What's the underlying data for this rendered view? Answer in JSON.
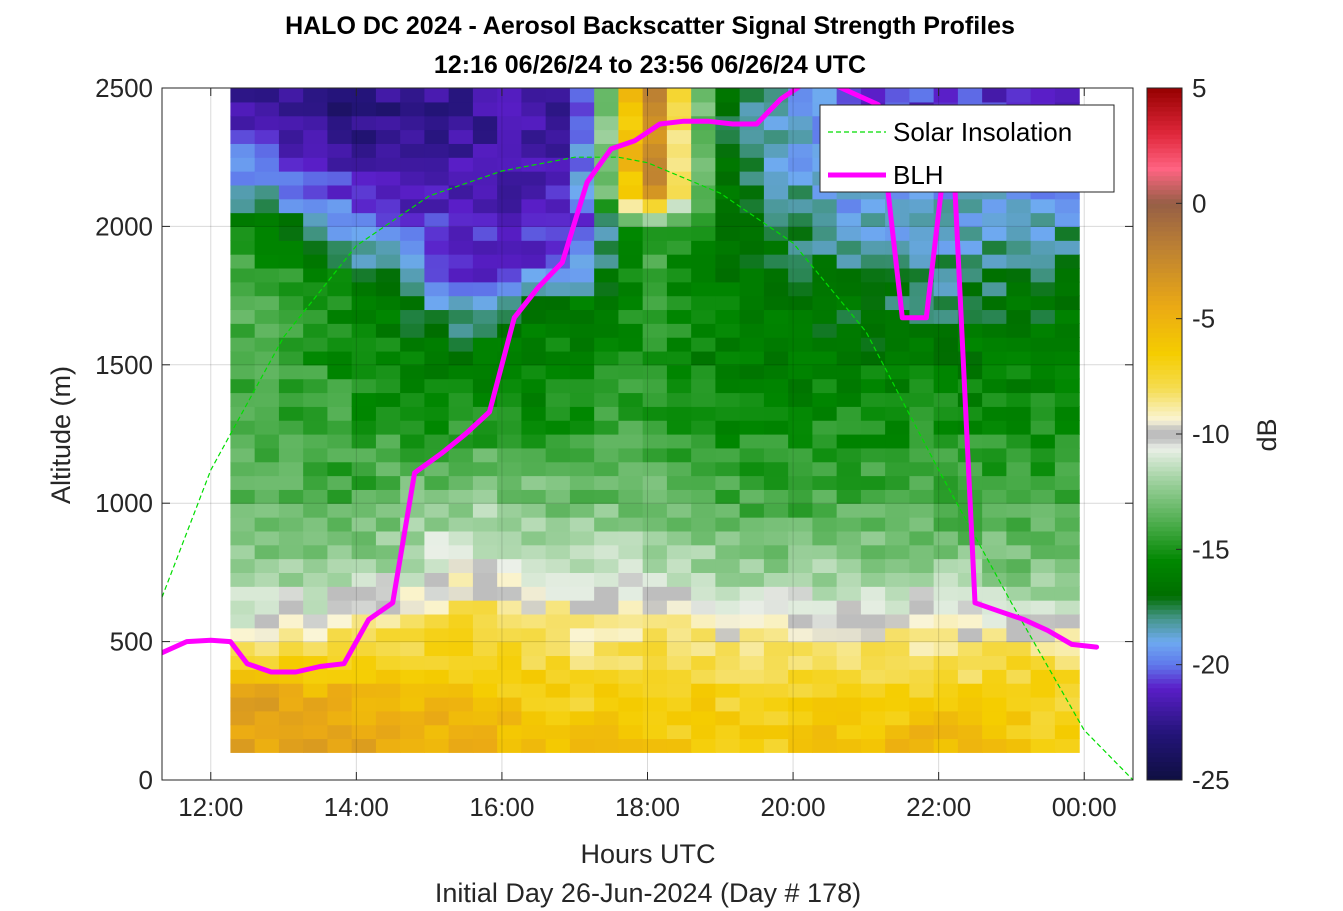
{
  "chart_data": {
    "type": "heatmap",
    "title_line1": "HALO DC 2024 - Aerosol Backscatter Signal Strength Profiles",
    "title_line2": "12:16 06/26/24 to 23:56 06/26/24  UTC",
    "xlabel": "Hours UTC",
    "xlabel2": "Initial Day 26-Jun-2024 (Day # 178)",
    "ylabel": "Altitude (m)",
    "colorbar_label": "dB",
    "xlim_hours": [
      11.33,
      24.67
    ],
    "ylim": [
      0,
      2500
    ],
    "x_ticks": [
      {
        "v": 12,
        "label": "12:00"
      },
      {
        "v": 14,
        "label": "14:00"
      },
      {
        "v": 16,
        "label": "16:00"
      },
      {
        "v": 18,
        "label": "18:00"
      },
      {
        "v": 20,
        "label": "20:00"
      },
      {
        "v": 22,
        "label": "22:00"
      },
      {
        "v": 24,
        "label": "00:00"
      }
    ],
    "y_ticks": [
      {
        "v": 0,
        "label": "0"
      },
      {
        "v": 500,
        "label": "500"
      },
      {
        "v": 1000,
        "label": "1000"
      },
      {
        "v": 1500,
        "label": "1500"
      },
      {
        "v": 2000,
        "label": "2000"
      },
      {
        "v": 2500,
        "label": "2500"
      }
    ],
    "clim": [
      -25,
      5
    ],
    "colorbar_ticks": [
      {
        "v": 5,
        "label": "5"
      },
      {
        "v": 0,
        "label": "0"
      },
      {
        "v": -5,
        "label": "-5"
      },
      {
        "v": -10,
        "label": "-10"
      },
      {
        "v": -15,
        "label": "-15"
      },
      {
        "v": -20,
        "label": "-20"
      },
      {
        "v": -25,
        "label": "-25"
      }
    ],
    "grid": true,
    "legend_position": "top-right",
    "legend": [
      {
        "name": "Solar Insolation",
        "color": "#00dd00",
        "style": "dashed"
      },
      {
        "name": "BLH",
        "color": "#ff00ff",
        "style": "solid"
      }
    ],
    "heatmap": {
      "time_start_hour": 12.27,
      "time_end_hour": 23.93,
      "altitude_start": 100,
      "altitude_end": 2500,
      "altitude_bin": 50,
      "profiles": [
        {
          "t": 12.5,
          "dB": {
            "150": -4,
            "300": -4,
            "450": -8,
            "600": -11,
            "750": -12,
            "1000": -13.5,
            "1500": -14,
            "1800": -14,
            "2000": -15,
            "2100": -18,
            "2400": -22
          }
        },
        {
          "t": 14.0,
          "dB": {
            "150": -4,
            "300": -5,
            "450": -7,
            "600": -10,
            "750": -12,
            "1000": -14,
            "1500": -15,
            "1800": -16,
            "2000": -20,
            "2400": -23
          }
        },
        {
          "t": 15.5,
          "dB": {
            "150": -5,
            "300": -6,
            "450": -7,
            "600": -8,
            "750": -10,
            "1000": -12,
            "1300": -15,
            "1600": -17,
            "1800": -21,
            "2400": -22
          }
        },
        {
          "t": 17.0,
          "dB": {
            "150": -6,
            "300": -7,
            "450": -8,
            "600": -9,
            "750": -11,
            "1000": -13,
            "1300": -15,
            "1700": -16,
            "1900": -21,
            "2400": -22
          }
        },
        {
          "t": 18.0,
          "dB": {
            "150": -6,
            "300": -7,
            "450": -8,
            "600": -9,
            "750": -11,
            "1000": -13,
            "1500": -15,
            "2000": -14,
            "2100": -3,
            "2200": -1
          }
        },
        {
          "t": 19.0,
          "dB": {
            "150": -7,
            "300": -7,
            "450": -8,
            "600": -10,
            "750": -12,
            "1000": -14,
            "1500": -16,
            "2000": -16,
            "2200": -17
          }
        },
        {
          "t": 20.5,
          "dB": {
            "150": -6,
            "300": -7,
            "450": -8,
            "600": -10,
            "750": -12,
            "1000": -14,
            "1500": -16,
            "1800": -17,
            "2100": -19,
            "2400": -20
          }
        },
        {
          "t": 22.0,
          "dB": {
            "150": -5,
            "300": -7,
            "450": -8,
            "600": -10,
            "750": -12,
            "1000": -14,
            "1500": -16,
            "1800": -18,
            "2100": -19,
            "2400": -21
          }
        },
        {
          "t": 23.5,
          "dB": {
            "150": -7,
            "300": -7,
            "450": -8,
            "600": -11,
            "750": -13,
            "1000": -14,
            "1500": -16,
            "1800": -17,
            "2100": -19,
            "2400": -21
          }
        }
      ]
    },
    "series": [
      {
        "name": "BLH",
        "x": [
          11.33,
          11.67,
          12.0,
          12.27,
          12.5,
          12.83,
          13.17,
          13.5,
          13.83,
          14.17,
          14.5,
          14.8,
          15.17,
          15.5,
          15.83,
          16.17,
          16.5,
          16.83,
          17.17,
          17.5,
          17.83,
          18.17,
          18.5,
          18.83,
          19.17,
          19.5,
          19.83,
          20.17,
          20.5,
          20.83,
          21.17,
          21.5,
          21.83,
          22.17,
          22.5,
          22.83,
          23.17,
          23.5,
          23.83,
          24.17,
          24.5,
          24.67
        ],
        "y": [
          460,
          500,
          505,
          500,
          420,
          390,
          390,
          410,
          420,
          580,
          640,
          1110,
          1180,
          1250,
          1330,
          1670,
          1780,
          1870,
          2160,
          2280,
          2310,
          2370,
          2380,
          2380,
          2370,
          2370,
          2460,
          2520,
          2520,
          2480,
          2440,
          1670,
          1670,
          2430,
          640,
          610,
          580,
          540,
          490,
          480,
          null,
          510
        ]
      },
      {
        "name": "Solar Insolation",
        "x": [
          11.33,
          12.0,
          13.0,
          14.0,
          15.0,
          16.0,
          17.0,
          17.6,
          18.0,
          19.0,
          20.0,
          21.0,
          22.0,
          23.0,
          24.0,
          24.67
        ],
        "y": [
          660,
          1120,
          1600,
          1930,
          2110,
          2200,
          2250,
          2250,
          2230,
          2120,
          1940,
          1620,
          1120,
          640,
          180,
          0
        ]
      }
    ]
  }
}
